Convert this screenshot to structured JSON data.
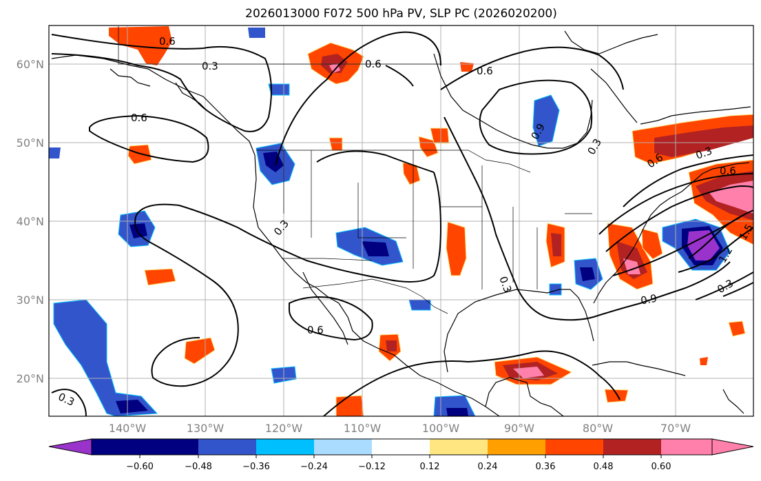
{
  "header": {
    "title": "2026013000 F072 500 hPa PV, SLP PC (2026020200)"
  },
  "map": {
    "lat_labels": [
      "60°N",
      "50°N",
      "40°N",
      "30°N",
      "20°N"
    ],
    "lon_labels": [
      "140°W",
      "130°W",
      "120°W",
      "110°W",
      "100°W",
      "90°W",
      "80°W",
      "70°W"
    ],
    "contour_labels": [
      "0.6",
      "0.3",
      "0.6",
      "0.6",
      "0.6",
      "0.3",
      "0.9",
      "0.3",
      "0.6",
      "0.3",
      "0.6",
      "0.9",
      "0.3",
      "1.2",
      "1.5",
      "0.3",
      "0.3",
      "0.6"
    ],
    "grid_color": "#b0b0b0",
    "land_outline_color": "#000000",
    "contour_color": "#000000"
  },
  "colorbar": {
    "tick_labels": [
      "−0.60",
      "−0.48",
      "−0.36",
      "−0.24",
      "−0.12",
      "0.12",
      "0.24",
      "0.36",
      "0.48",
      "0.60"
    ],
    "colors": [
      "#9933cc",
      "#000080",
      "#3355cc",
      "#00bfff",
      "#aadcff",
      "#ffffff",
      "#ffe680",
      "#ffa000",
      "#ff4500",
      "#b22222",
      "#ff80aa"
    ]
  }
}
